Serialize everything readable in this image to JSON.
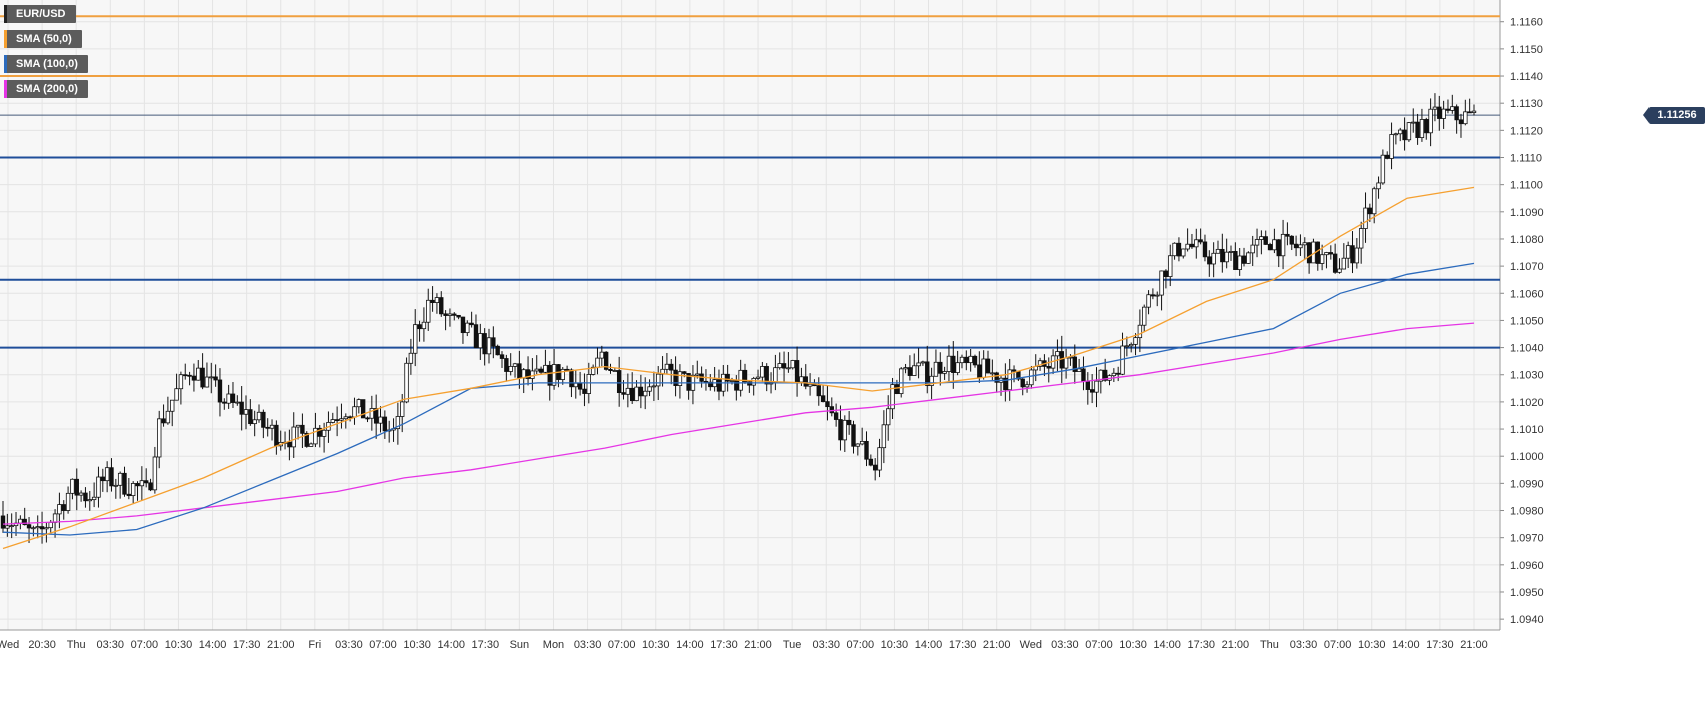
{
  "legend": [
    {
      "label": "EUR/USD",
      "color": "#222222"
    },
    {
      "label": "SMA (50,0)",
      "color": "#f5a030"
    },
    {
      "label": "SMA (100,0)",
      "color": "#2c6bbd"
    },
    {
      "label": "SMA (200,0)",
      "color": "#e535e5"
    }
  ],
  "last_price": "1.11256",
  "colors": {
    "background": "#f7f7f7",
    "grid": "#e4e4e4",
    "resistance": "#f0a040",
    "support": "#1f4e9a",
    "sma50": "#f5a030",
    "sma100": "#2c6bbd",
    "sma200": "#e535e5",
    "candle_up": "#ffffff",
    "candle_down": "#111111"
  },
  "chart_data": {
    "type": "candlestick",
    "symbol": "EUR/USD",
    "ylim": [
      1.0936,
      1.1168
    ],
    "y_ticks": [
      "1.1160",
      "1.1150",
      "1.1140",
      "1.1130",
      "1.1120",
      "1.1110",
      "1.1100",
      "1.1090",
      "1.1080",
      "1.1070",
      "1.1060",
      "1.1050",
      "1.1040",
      "1.1030",
      "1.1020",
      "1.1010",
      "1.1000",
      "1.0990",
      "1.0980",
      "1.0970",
      "1.0960",
      "1.0950",
      "1.0940"
    ],
    "x_ticks": [
      "Wed",
      "20:30",
      "Thu",
      "03:30",
      "07:00",
      "10:30",
      "14:00",
      "17:30",
      "21:00",
      "Fri",
      "03:30",
      "07:00",
      "10:30",
      "14:00",
      "17:30",
      "Sun",
      "Mon",
      "03:30",
      "07:00",
      "10:30",
      "14:00",
      "17:30",
      "21:00",
      "Tue",
      "03:30",
      "07:00",
      "10:30",
      "14:00",
      "17:30",
      "21:00",
      "Wed",
      "03:30",
      "07:00",
      "10:30",
      "14:00",
      "17:30",
      "21:00",
      "Thu",
      "03:30",
      "07:00",
      "10:30",
      "14:00",
      "17:30",
      "21:00"
    ],
    "horizontal_levels": [
      {
        "value": 1.1162,
        "kind": "resistance"
      },
      {
        "value": 1.114,
        "kind": "resistance"
      },
      {
        "value": 1.111,
        "kind": "support"
      },
      {
        "value": 1.1065,
        "kind": "support"
      },
      {
        "value": 1.104,
        "kind": "support"
      }
    ],
    "current_price": 1.11256,
    "price_path": [
      [
        0,
        1.0978
      ],
      [
        1,
        1.0974
      ],
      [
        2,
        1.097
      ],
      [
        3,
        1.0979
      ],
      [
        4,
        1.0988
      ],
      [
        5,
        1.0985
      ],
      [
        6,
        1.0992
      ],
      [
        7,
        1.099
      ],
      [
        8,
        1.0988
      ],
      [
        8.5,
        1.0986
      ],
      [
        9,
        1.101
      ],
      [
        10,
        1.1022
      ],
      [
        11,
        1.1033
      ],
      [
        12,
        1.1027
      ],
      [
        13,
        1.102
      ],
      [
        14,
        1.1017
      ],
      [
        15,
        1.1012
      ],
      [
        16,
        1.1008
      ],
      [
        17,
        1.1007
      ],
      [
        18,
        1.1008
      ],
      [
        19,
        1.1013
      ],
      [
        20,
        1.1018
      ],
      [
        21,
        1.1016
      ],
      [
        22,
        1.1012
      ],
      [
        23,
        1.1008
      ],
      [
        24,
        1.1045
      ],
      [
        25,
        1.1058
      ],
      [
        26,
        1.105
      ],
      [
        27,
        1.1046
      ],
      [
        28,
        1.1042
      ],
      [
        29,
        1.1036
      ],
      [
        30,
        1.103
      ],
      [
        31,
        1.1028
      ],
      [
        32,
        1.103
      ],
      [
        33,
        1.1032
      ],
      [
        34,
        1.1022
      ],
      [
        35,
        1.1038
      ],
      [
        36,
        1.1028
      ],
      [
        37,
        1.1024
      ],
      [
        38,
        1.1028
      ],
      [
        39,
        1.103
      ],
      [
        40,
        1.1027
      ],
      [
        41,
        1.1027
      ],
      [
        42,
        1.1026
      ],
      [
        43,
        1.1028
      ],
      [
        44,
        1.103
      ],
      [
        45,
        1.103
      ],
      [
        46,
        1.1032
      ],
      [
        47,
        1.1025
      ],
      [
        48,
        1.1018
      ],
      [
        49,
        1.101
      ],
      [
        50,
        1.1005
      ],
      [
        51,
        1.0996
      ],
      [
        52,
        1.1025
      ],
      [
        53,
        1.1033
      ],
      [
        54,
        1.103
      ],
      [
        55,
        1.1035
      ],
      [
        56,
        1.1033
      ],
      [
        57,
        1.1032
      ],
      [
        58,
        1.103
      ],
      [
        59,
        1.1028
      ],
      [
        60,
        1.103
      ],
      [
        61,
        1.1033
      ],
      [
        62,
        1.1035
      ],
      [
        63,
        1.103
      ],
      [
        64,
        1.1027
      ],
      [
        65,
        1.1032
      ],
      [
        66,
        1.1045
      ],
      [
        67,
        1.1058
      ],
      [
        68,
        1.107
      ],
      [
        69,
        1.1079
      ],
      [
        70,
        1.1075
      ],
      [
        71,
        1.1073
      ],
      [
        72,
        1.1073
      ],
      [
        73,
        1.1075
      ],
      [
        74,
        1.108
      ],
      [
        75,
        1.1077
      ],
      [
        76,
        1.1077
      ],
      [
        77,
        1.1073
      ],
      [
        78,
        1.107
      ],
      [
        79,
        1.1076
      ],
      [
        80,
        1.1095
      ],
      [
        81,
        1.1114
      ],
      [
        82,
        1.1118
      ],
      [
        83,
        1.1122
      ],
      [
        84,
        1.1126
      ],
      [
        85,
        1.1125
      ],
      [
        86,
        1.1125
      ]
    ],
    "sma50": [
      1.0966,
      1.0974,
      1.0983,
      1.0992,
      1.1003,
      1.1012,
      1.1021,
      1.1025,
      1.103,
      1.1033,
      1.103,
      1.1028,
      1.1027,
      1.1024,
      1.1027,
      1.103,
      1.1037,
      1.1045,
      1.1057,
      1.1065,
      1.1081,
      1.1095,
      1.1099
    ],
    "sma100": [
      1.0972,
      1.0971,
      1.0973,
      1.0981,
      1.0991,
      1.1001,
      1.1012,
      1.1025,
      1.1027,
      1.1027,
      1.1027,
      1.1027,
      1.1027,
      1.1027,
      1.1027,
      1.1028,
      1.1032,
      1.1037,
      1.1042,
      1.1047,
      1.106,
      1.1067,
      1.1071
    ],
    "sma200": [
      1.0975,
      1.0976,
      1.0978,
      1.0981,
      1.0984,
      1.0987,
      1.0992,
      1.0995,
      1.0999,
      1.1003,
      1.1008,
      1.1012,
      1.1016,
      1.1018,
      1.1021,
      1.1024,
      1.1027,
      1.103,
      1.1034,
      1.1038,
      1.1043,
      1.1047,
      1.1049
    ]
  }
}
